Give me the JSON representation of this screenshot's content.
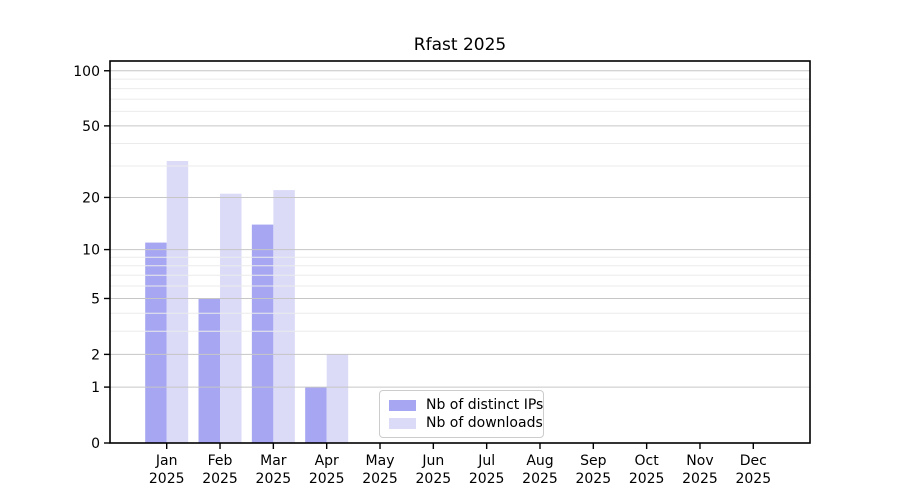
{
  "chart_data": {
    "type": "bar",
    "title": "Rfast 2025",
    "categories": [
      {
        "month": "Jan",
        "year": "2025"
      },
      {
        "month": "Feb",
        "year": "2025"
      },
      {
        "month": "Mar",
        "year": "2025"
      },
      {
        "month": "Apr",
        "year": "2025"
      },
      {
        "month": "May",
        "year": "2025"
      },
      {
        "month": "Jun",
        "year": "2025"
      },
      {
        "month": "Jul",
        "year": "2025"
      },
      {
        "month": "Aug",
        "year": "2025"
      },
      {
        "month": "Sep",
        "year": "2025"
      },
      {
        "month": "Oct",
        "year": "2025"
      },
      {
        "month": "Nov",
        "year": "2025"
      },
      {
        "month": "Dec",
        "year": "2025"
      }
    ],
    "series": [
      {
        "name": "Nb of distinct IPs",
        "color": "#a6a6f2",
        "values": [
          11,
          5,
          14,
          1,
          0,
          0,
          0,
          0,
          0,
          0,
          0,
          0
        ]
      },
      {
        "name": "Nb of downloads",
        "color": "#dbdbf8",
        "values": [
          32,
          21,
          22,
          2,
          0,
          0,
          0,
          0,
          0,
          0,
          0,
          0
        ]
      }
    ],
    "yscale": "log1p",
    "yticks": [
      0,
      1,
      2,
      5,
      10,
      20,
      50,
      100
    ],
    "yticks_minor": [
      3,
      4,
      6,
      7,
      8,
      9,
      30,
      40,
      60,
      70,
      80,
      90
    ],
    "ylim": [
      0,
      113
    ],
    "grid": true,
    "legend_position": "inside bottom-center",
    "colors": {
      "major_grid": "#c6c6c6",
      "minor_grid": "#ebebeb",
      "spine": "#000000",
      "text": "#000000",
      "background": "#ffffff"
    }
  }
}
